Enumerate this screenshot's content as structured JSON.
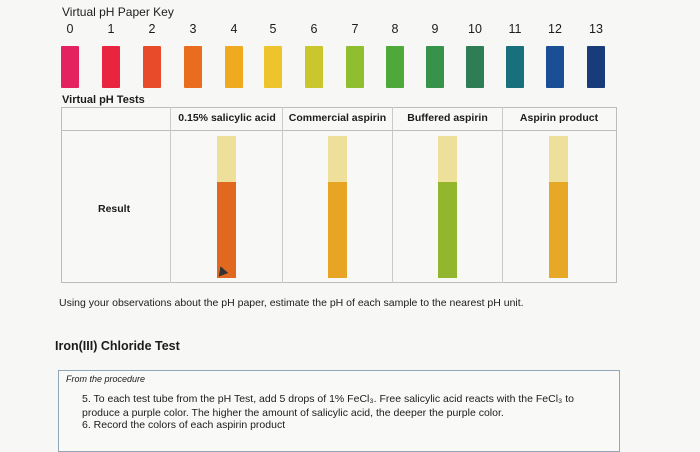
{
  "key": {
    "title": "Virtual pH Paper Key",
    "numbers": [
      "0",
      "1",
      "2",
      "3",
      "4",
      "5",
      "6",
      "7",
      "8",
      "9",
      "10",
      "11",
      "12",
      "13"
    ],
    "colors": [
      "#e3225f",
      "#e8243f",
      "#e84b2a",
      "#ea6c1e",
      "#efaa1f",
      "#eec42c",
      "#c9c72c",
      "#8fbf2e",
      "#4fa83a",
      "#38934a",
      "#2f7d54",
      "#17707c",
      "#1b4f95",
      "#173c79"
    ]
  },
  "tests": {
    "title": "Virtual pH Tests",
    "headers": [
      "0.15% salicylic acid",
      "Commercial aspirin",
      "Buffered aspirin",
      "Aspirin product"
    ],
    "row_label": "Result",
    "strip_top_color": "#eedf9b",
    "result_colors": [
      "#e0691f",
      "#e8a524",
      "#93b72c",
      "#e7a827"
    ]
  },
  "instruction": "Using your observations about the pH paper, estimate the pH of each sample to the nearest pH unit.",
  "iron_test": {
    "title": "Iron(III) Chloride Test",
    "procedure_label": "From the procedure",
    "step5": "5. To each test tube from the pH Test, add 5 drops of 1% FeCl₃. Free salicylic acid reacts with the FeCl₃ to produce a purple color. The higher the amount of salicylic acid, the deeper the purple color.",
    "step6": "6. Record the colors of each aspirin product"
  }
}
